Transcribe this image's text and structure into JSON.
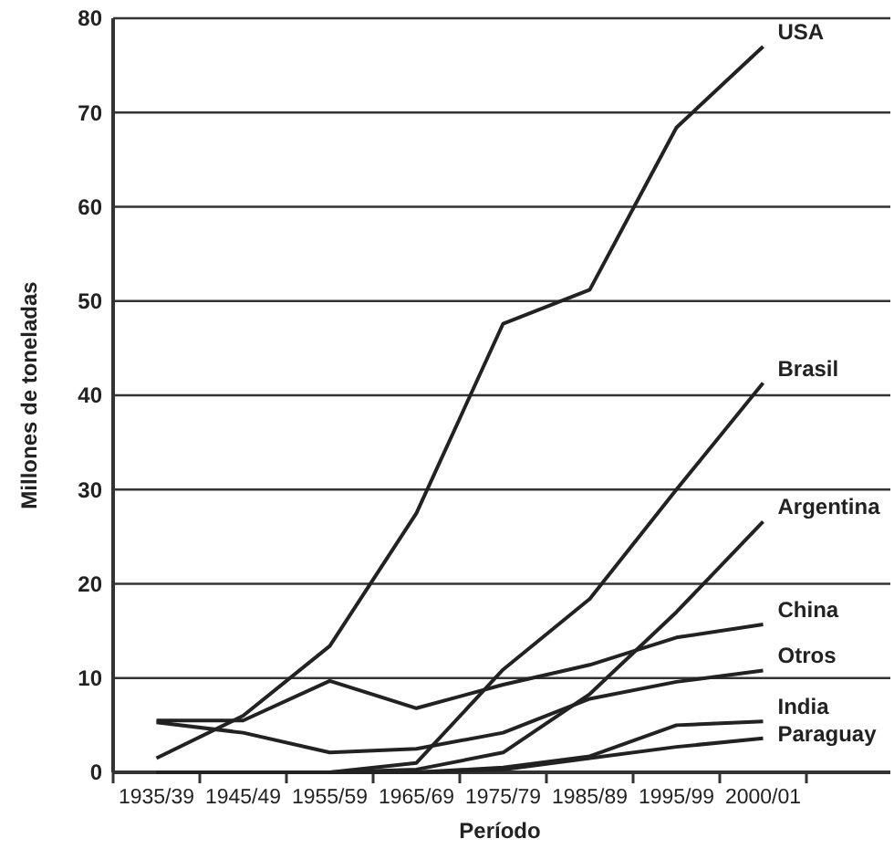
{
  "chart_data": {
    "type": "line",
    "xlabel": "Período",
    "ylabel": "Millones de toneladas",
    "categories": [
      "1935/39",
      "1945/49",
      "1955/59",
      "1965/69",
      "1975/79",
      "1985/89",
      "1995/99",
      "2000/01"
    ],
    "ylim": [
      0,
      80
    ],
    "yticks": [
      0,
      10,
      20,
      30,
      40,
      50,
      60,
      70,
      80
    ],
    "grid": "y",
    "marker": "none",
    "line_style": "solid",
    "series": [
      {
        "name": "USA",
        "color": "#222222",
        "values": [
          1.5,
          6,
          13.4,
          27.5,
          47.6,
          51.2,
          68.4,
          77
        ]
      },
      {
        "name": "Brasil",
        "color": "#222222",
        "values": [
          0,
          0,
          0,
          1,
          10.9,
          18.4,
          30,
          41.3
        ]
      },
      {
        "name": "Argentina",
        "color": "#222222",
        "values": [
          0,
          0,
          0,
          0.3,
          2.1,
          8.3,
          17,
          26.6
        ]
      },
      {
        "name": "China",
        "color": "#222222",
        "values": [
          5.5,
          5.5,
          9.7,
          6.8,
          9.3,
          11.4,
          14.3,
          15.7
        ]
      },
      {
        "name": "Otros",
        "color": "#222222",
        "values": [
          5.3,
          4.2,
          2.1,
          2.5,
          4.2,
          7.8,
          9.6,
          10.8
        ]
      },
      {
        "name": "India",
        "color": "#222222",
        "values": [
          0,
          0,
          0,
          0,
          0.5,
          1.7,
          5,
          5.4
        ]
      },
      {
        "name": "Paraguay",
        "color": "#222222",
        "values": [
          0,
          0,
          0,
          0,
          0.3,
          1.5,
          2.7,
          3.6
        ]
      }
    ]
  }
}
